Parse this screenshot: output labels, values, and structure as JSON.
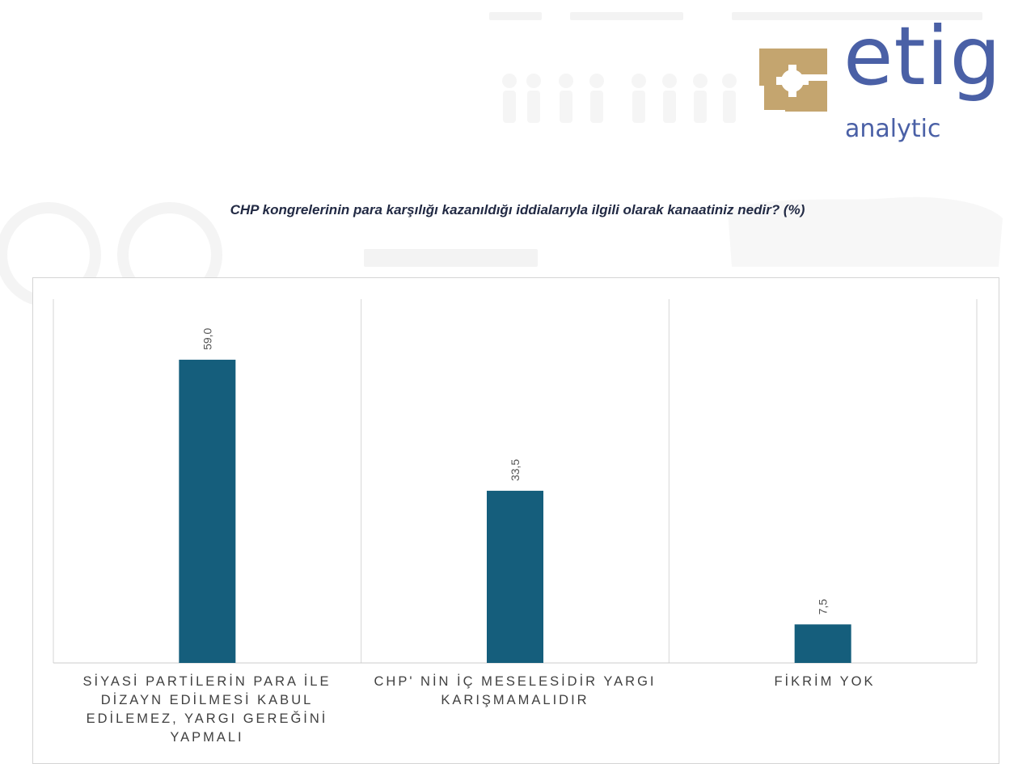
{
  "brand": {
    "word": "etig",
    "sub": "analytic",
    "color": "#4a60a6",
    "mark_color": "#c4a56f"
  },
  "chart_data": {
    "type": "bar",
    "title": "CHP kongrelerinin para karşılığı kazanıldığı iddialarıyla ilgili olarak kanaatiniz nedir? (%)",
    "categories": [
      "SİYASİ PARTİLERİN PARA İLE DİZAYN EDİLMESİ KABUL EDİLEMEZ, YARGI GEREĞİNİ YAPMALI",
      "CHP' NİN İÇ MESELESİDİR YARGI KARIŞMAMALIDIR",
      "FİKRİM YOK"
    ],
    "values": [
      59.0,
      33.5,
      7.5
    ],
    "data_labels": [
      "59,0",
      "33,5",
      "7,5"
    ],
    "ylim": [
      0,
      70
    ],
    "bar_color": "#155e7c",
    "xlabel": "",
    "ylabel": "",
    "legend": "none"
  }
}
